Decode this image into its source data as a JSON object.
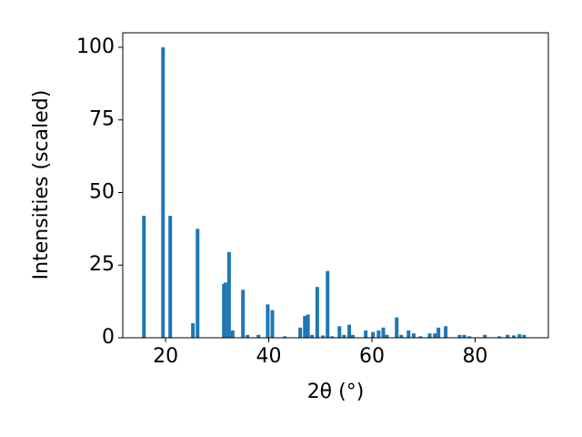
{
  "chart_data": {
    "type": "bar",
    "x_label": "2θ (°)",
    "y_label": "Intensities (scaled)",
    "x": [
      15.8,
      19.5,
      20.9,
      25.3,
      26.2,
      31.3,
      31.6,
      32.3,
      33.0,
      35.0,
      35.9,
      38.0,
      39.8,
      40.7,
      43.1,
      46.1,
      47.0,
      47.6,
      48.4,
      49.4,
      50.5,
      51.4,
      52.3,
      53.7,
      54.6,
      55.6,
      56.3,
      58.8,
      60.2,
      61.3,
      62.2,
      62.9,
      64.8,
      65.7,
      67.1,
      68.1,
      69.4,
      71.2,
      72.2,
      72.9,
      74.3,
      77.0,
      77.9,
      78.9,
      81.9,
      84.7,
      86.3,
      87.5,
      88.6,
      89.5
    ],
    "values": [
      42,
      100,
      42,
      5,
      37.5,
      18.5,
      19,
      29.5,
      2.5,
      16.5,
      1,
      1,
      11.5,
      9.5,
      0.5,
      3.5,
      7.5,
      8,
      1,
      17.5,
      0.8,
      23,
      0.5,
      4,
      1,
      4.5,
      1,
      2.5,
      2,
      2.5,
      3.5,
      1,
      7,
      1,
      2.5,
      1.5,
      0.5,
      1.5,
      1.5,
      3.5,
      4,
      1,
      1,
      0.5,
      1,
      0.5,
      1,
      0.8,
      1.2,
      1
    ],
    "color": "#1f77b4",
    "xlim": [
      11.7,
      94.2
    ],
    "xticks": [
      20,
      40,
      60,
      80
    ],
    "ylim": [
      0,
      105
    ],
    "yticks": [
      0,
      25,
      50,
      75,
      100
    ],
    "grid": false
  }
}
